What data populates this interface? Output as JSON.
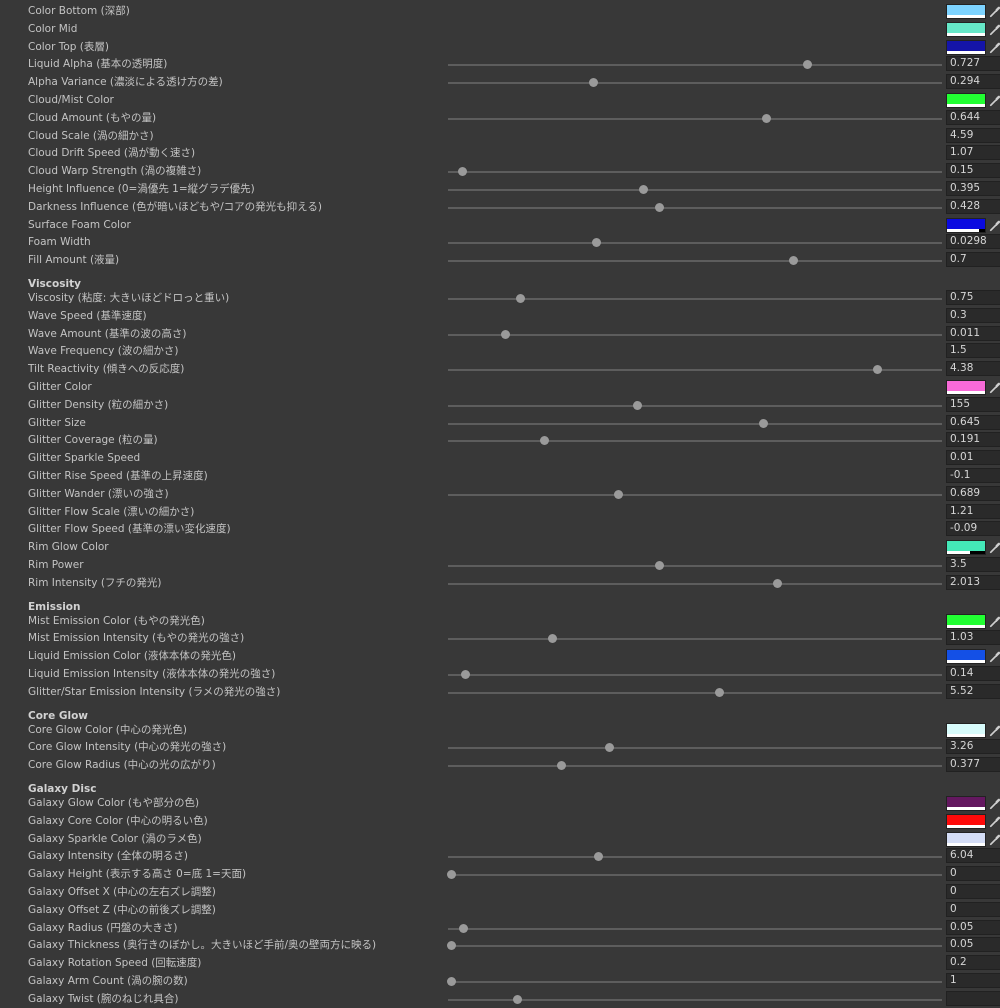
{
  "rows": [
    {
      "type": "color",
      "label": "Color Bottom (深部)",
      "color": "#7dd3ff",
      "alpha": 1
    },
    {
      "type": "color",
      "label": "Color Mid",
      "color": "#66e8c8",
      "alpha": 1
    },
    {
      "type": "color",
      "label": "Color Top (表層)",
      "color": "#1414a8",
      "alpha": 1
    },
    {
      "type": "slider",
      "label": "Liquid Alpha (基本の透明度)",
      "value": "0.727",
      "pos": 0.727
    },
    {
      "type": "slider",
      "label": "Alpha Variance (濃淡による透け方の差)",
      "value": "0.294",
      "pos": 0.294
    },
    {
      "type": "color",
      "label": "Cloud/Mist Color",
      "color": "#22ff33",
      "alpha": 1
    },
    {
      "type": "slider",
      "label": "Cloud Amount (もやの量)",
      "value": "0.644",
      "pos": 0.644
    },
    {
      "type": "field",
      "label": "Cloud Scale (渦の細かさ)",
      "value": "4.59"
    },
    {
      "type": "field",
      "label": "Cloud Drift Speed (渦が動く速さ)",
      "value": "1.07"
    },
    {
      "type": "slider",
      "label": "Cloud Warp Strength (渦の複雑さ)",
      "value": "0.15",
      "pos": 0.03
    },
    {
      "type": "slider",
      "label": "Height Influence (0=渦優先 1=縦グラデ優先)",
      "value": "0.395",
      "pos": 0.395
    },
    {
      "type": "slider",
      "label": "Darkness Influence (色が暗いほどもや/コアの発光も抑える)",
      "value": "0.428",
      "pos": 0.428
    },
    {
      "type": "color",
      "label": "Surface Foam Color",
      "color": "#0a0ae0",
      "alpha": 0.85
    },
    {
      "type": "slider",
      "label": "Foam Width",
      "value": "0.0298",
      "pos": 0.3
    },
    {
      "type": "slider",
      "label": "Fill Amount (液量)",
      "value": "0.7",
      "pos": 0.7
    },
    {
      "type": "header",
      "label": "Viscosity"
    },
    {
      "type": "slider",
      "label": "Viscosity (粘度: 大きいほどドロっと重い)",
      "value": "0.75",
      "pos": 0.147
    },
    {
      "type": "field",
      "label": "Wave Speed (基準速度)",
      "value": "0.3"
    },
    {
      "type": "slider",
      "label": "Wave Amount (基準の波の高さ)",
      "value": "0.011",
      "pos": 0.116
    },
    {
      "type": "field",
      "label": "Wave Frequency (波の細かさ)",
      "value": "1.5"
    },
    {
      "type": "slider",
      "label": "Tilt Reactivity (傾きへの反応度)",
      "value": "4.38",
      "pos": 0.87
    },
    {
      "type": "color",
      "label": "Glitter Color",
      "color": "#f86ad8",
      "alpha": 1
    },
    {
      "type": "slider",
      "label": "Glitter Density (粒の細かさ)",
      "value": "155",
      "pos": 0.383
    },
    {
      "type": "slider",
      "label": "Glitter Size",
      "value": "0.645",
      "pos": 0.638
    },
    {
      "type": "slider",
      "label": "Glitter Coverage (粒の量)",
      "value": "0.191",
      "pos": 0.196
    },
    {
      "type": "field",
      "label": "Glitter Sparkle Speed",
      "value": "0.01"
    },
    {
      "type": "field",
      "label": "Glitter Rise Speed (基準の上昇速度)",
      "value": "-0.1"
    },
    {
      "type": "slider",
      "label": "Glitter Wander (漂いの強さ)",
      "value": "0.689",
      "pos": 0.346
    },
    {
      "type": "field",
      "label": "Glitter Flow Scale (漂いの細かさ)",
      "value": "1.21"
    },
    {
      "type": "field",
      "label": "Glitter Flow Speed (基準の漂い変化速度)",
      "value": "-0.09"
    },
    {
      "type": "color",
      "label": "Rim Glow Color",
      "color": "#44e8b8",
      "alpha": 0.6
    },
    {
      "type": "slider",
      "label": "Rim Power",
      "value": "3.5",
      "pos": 0.429
    },
    {
      "type": "slider",
      "label": "Rim Intensity (フチの発光)",
      "value": "2.013",
      "pos": 0.666
    },
    {
      "type": "header",
      "label": "Emission"
    },
    {
      "type": "color",
      "label": "Mist Emission Color (もやの発光色)",
      "color": "#22ff33",
      "alpha": 1
    },
    {
      "type": "slider",
      "label": "Mist Emission Intensity (もやの発光の強さ)",
      "value": "1.03",
      "pos": 0.212
    },
    {
      "type": "color",
      "label": "Liquid Emission Color (液体本体の発光色)",
      "color": "#1450e6",
      "alpha": 1
    },
    {
      "type": "slider",
      "label": "Liquid Emission Intensity (液体本体の発光の強さ)",
      "value": "0.14",
      "pos": 0.036
    },
    {
      "type": "slider",
      "label": "Glitter/Star Emission Intensity (ラメの発光の強さ)",
      "value": "5.52",
      "pos": 0.549
    },
    {
      "type": "header",
      "label": "Core Glow"
    },
    {
      "type": "color",
      "label": "Core Glow Color (中心の発光色)",
      "color": "#d8fcfc",
      "alpha": 1
    },
    {
      "type": "slider",
      "label": "Core Glow Intensity (中心の発光の強さ)",
      "value": "3.26",
      "pos": 0.327
    },
    {
      "type": "slider",
      "label": "Core Glow Radius (中心の光の広がり)",
      "value": "0.377",
      "pos": 0.229
    },
    {
      "type": "header",
      "label": "Galaxy Disc"
    },
    {
      "type": "color",
      "label": "Galaxy Glow Color (もや部分の色)",
      "color": "#641860",
      "alpha": 1
    },
    {
      "type": "color",
      "label": "Galaxy Core Color (中心の明るい色)",
      "color": "#ff0a0a",
      "alpha": 1
    },
    {
      "type": "color",
      "label": "Galaxy Sparkle Color (渦のラメ色)",
      "color": "#d4ddf6",
      "alpha": 1
    },
    {
      "type": "slider",
      "label": "Galaxy Intensity (全体の明るさ)",
      "value": "6.04",
      "pos": 0.304
    },
    {
      "type": "slider",
      "label": "Galaxy Height (表示する高さ 0=底 1=天面)",
      "value": "0",
      "pos": 0.008
    },
    {
      "type": "field",
      "label": "Galaxy Offset X (中心の左右ズレ調整)",
      "value": "0"
    },
    {
      "type": "field",
      "label": "Galaxy Offset Z (中心の前後ズレ調整)",
      "value": "0"
    },
    {
      "type": "slider",
      "label": "Galaxy Radius (円盤の大きさ)",
      "value": "0.05",
      "pos": 0.032
    },
    {
      "type": "slider",
      "label": "Galaxy Thickness (奥行きのぼかし。大きいほど手前/奥の壁両方に映る)",
      "value": "0.05",
      "pos": 0.008
    },
    {
      "type": "field",
      "label": "Galaxy Rotation Speed (回転速度)",
      "value": "0.2"
    },
    {
      "type": "slider",
      "label": "Galaxy Arm Count (渦の腕の数)",
      "value": "1",
      "pos": 0.008
    },
    {
      "type": "slider",
      "label": "Galaxy Twist (腕のねじれ具合)",
      "value": "",
      "pos": 0.141
    }
  ],
  "icons": {
    "color_picker": "eyedropper-icon"
  }
}
